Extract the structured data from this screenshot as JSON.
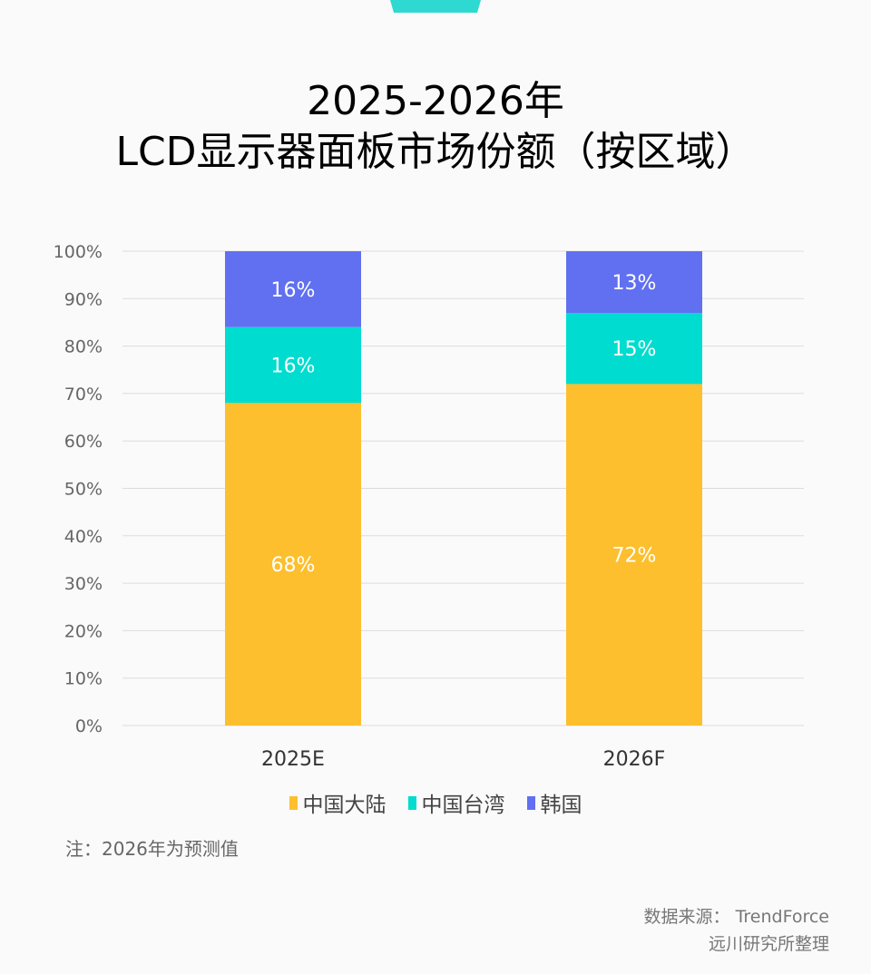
{
  "title_line1": "2025-2026年",
  "title_line2": "LCD显示器面板市场份额（按区域）",
  "note": "注：2026年为预测值",
  "source_line1": "数据来源： TrendForce",
  "source_line2": "远川研究所整理",
  "chart_data": {
    "type": "bar",
    "stacked": true,
    "categories": [
      "2025E",
      "2026F"
    ],
    "series": [
      {
        "name": "中国大陆",
        "values": [
          68,
          72
        ],
        "labels": [
          "68%",
          "72%"
        ],
        "color": "#fdbf2d"
      },
      {
        "name": "中国台湾",
        "values": [
          16,
          15
        ],
        "labels": [
          "16%",
          "15%"
        ],
        "color": "#00dccf"
      },
      {
        "name": "韩国",
        "values": [
          16,
          13
        ],
        "labels": [
          "16%",
          "13%"
        ],
        "color": "#6170f0"
      }
    ],
    "ylim": [
      0,
      100
    ],
    "yticks": [
      "0%",
      "10%",
      "20%",
      "30%",
      "40%",
      "50%",
      "60%",
      "70%",
      "80%",
      "90%",
      "100%"
    ],
    "grid": true,
    "legend_position": "bottom"
  }
}
